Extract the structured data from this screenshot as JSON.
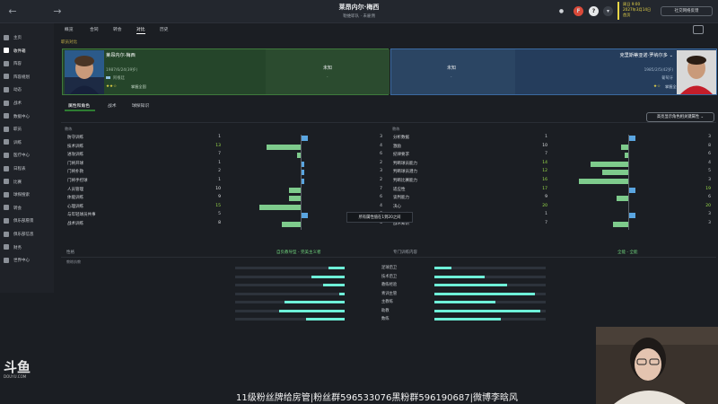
{
  "topbar": {
    "title": "莱昂内尔·梅西",
    "subtitle": "勒维耶队 · 未雇佣",
    "date_line1": "周日 9:00",
    "date_line2": "2027年3月14日",
    "date_line3": "首页",
    "social_button": "社交网络反馈",
    "help_icon": "?",
    "f_icon": "F"
  },
  "subnav": {
    "tabs": [
      "概览",
      "合同",
      "转会",
      "对比",
      "历史"
    ]
  },
  "sidebar": {
    "items": [
      {
        "label": "主页",
        "icon": "home-icon"
      },
      {
        "label": "收件箱",
        "icon": "inbox-icon"
      },
      {
        "label": "阵容",
        "icon": "squad-icon"
      },
      {
        "label": "阵容规划",
        "icon": "planner-icon"
      },
      {
        "label": "动态",
        "icon": "news-icon"
      },
      {
        "label": "战术",
        "icon": "tactics-icon"
      },
      {
        "label": "数据中心",
        "icon": "data-icon"
      },
      {
        "label": "职员",
        "icon": "staff-icon"
      },
      {
        "label": "训练",
        "icon": "training-icon"
      },
      {
        "label": "医疗中心",
        "icon": "medical-icon"
      },
      {
        "label": "日程表",
        "icon": "calendar-icon"
      },
      {
        "label": "比赛",
        "icon": "match-icon"
      },
      {
        "label": "球探搜索",
        "icon": "scouting-icon"
      },
      {
        "label": "转会",
        "icon": "transfers-icon"
      },
      {
        "label": "俱乐部愿景",
        "icon": "vision-icon"
      },
      {
        "label": "俱乐部信息",
        "icon": "club-info-icon"
      },
      {
        "label": "财务",
        "icon": "finance-icon"
      },
      {
        "label": "世界中心",
        "icon": "world-icon"
      }
    ]
  },
  "compare_label": "职员对比",
  "left_card": {
    "name": "莱昂内尔·梅西",
    "born": "1987/6/24(39岁)",
    "club": "阿根廷",
    "stars": "★★☆",
    "role": "掌握全国",
    "unknown": "未知",
    "dash": "-"
  },
  "right_card": {
    "name": "克里斯蒂亚诺·罗纳尔多 ⌄",
    "born": "1985/2/5(42岁)",
    "club": "葡萄牙",
    "stars": "★☆",
    "role": "掌握全国",
    "unknown": "未知",
    "dash": "-"
  },
  "section_tabs": [
    "属性和角色",
    "战术",
    "球探知识"
  ],
  "dropdown": "高亮显示角色相关键属性 ⌄",
  "left_col_header": "教练",
  "right_col_header": "教练",
  "left_attrs": [
    {
      "name": "防守训练",
      "a": 1,
      "b": 3
    },
    {
      "name": "技术训练",
      "a": 13,
      "b": 4
    },
    {
      "name": "进攻训练",
      "a": 7,
      "b": 6
    },
    {
      "name": "门将开球",
      "a": 1,
      "b": 2
    },
    {
      "name": "门将扑救",
      "a": 2,
      "b": 3
    },
    {
      "name": "门将手控球",
      "a": 1,
      "b": 2
    },
    {
      "name": "人员管理",
      "a": 10,
      "b": 7
    },
    {
      "name": "体能训练",
      "a": 9,
      "b": 6
    },
    {
      "name": "心理训练",
      "a": 15,
      "b": 4
    },
    {
      "name": "与年轻球员共事",
      "a": 5,
      "b": 7
    },
    {
      "name": "战术训练",
      "a": 8,
      "b": 3
    }
  ],
  "right_attrs": [
    {
      "name": "分析数据",
      "a": 1,
      "b": 3
    },
    {
      "name": "激励",
      "a": 10,
      "b": 8
    },
    {
      "name": "纪律要求",
      "a": 7,
      "b": 6
    },
    {
      "name": "判断球员能力",
      "a": 14,
      "b": 4
    },
    {
      "name": "判断球员潜力",
      "a": 12,
      "b": 5
    },
    {
      "name": "判断比赛能力",
      "a": 16,
      "b": 3
    },
    {
      "name": "适应性",
      "a": 17,
      "b": 19
    },
    {
      "name": "谈判能力",
      "a": 9,
      "b": 6
    },
    {
      "name": "决心",
      "a": 20,
      "b": 20
    },
    {
      "name": "运动科学",
      "a": 1,
      "b": 3
    },
    {
      "name": "战术知识",
      "a": 7,
      "b": 3
    }
  ],
  "tooltip": "所有属性值在1到20之间",
  "footer": {
    "left_title": "性格",
    "left_sub": "教练执教",
    "left_value": "自负教导型 - 完美主义者",
    "right_title": "专门训练内容",
    "right_value": "全能 - 全能"
  },
  "traits": [
    {
      "label": "足球后卫",
      "l": 0.15,
      "r": 0.15
    },
    {
      "label": "技术后卫",
      "l": 0.3,
      "r": 0.45
    },
    {
      "label": "教练经验",
      "l": 0.2,
      "r": 0.65
    },
    {
      "label": "青训主管",
      "l": 0.05,
      "r": 0.9
    },
    {
      "label": "主教练",
      "l": 0.55,
      "r": 0.55
    },
    {
      "label": "助教",
      "l": 0.6,
      "r": 0.95
    },
    {
      "label": "数练",
      "l": 0.35,
      "r": 0.6
    }
  ],
  "watermark": "斗鱼",
  "watermark_sub": "DOUYU.COM",
  "banner": "11级粉丝牌给房管|粉丝群596533076黑粉群596190687|微博李晗风",
  "colors": {
    "green_bar": "#7ecb8c",
    "blue_bar": "#5aa5e0",
    "trait": "#6ef0d8",
    "accent_yellow": "#e8d648"
  }
}
